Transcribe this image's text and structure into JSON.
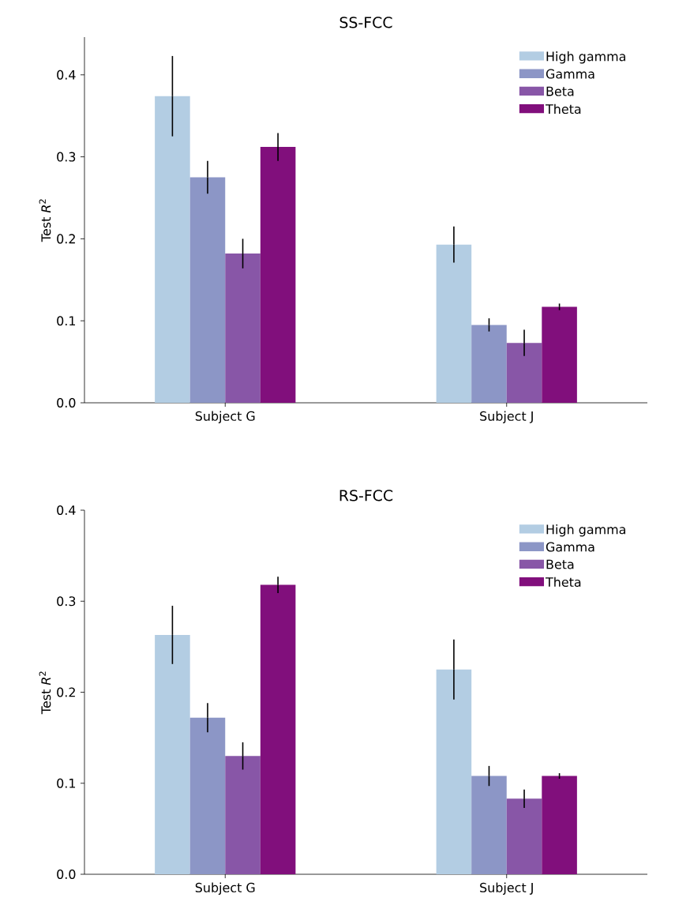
{
  "chart_data": [
    {
      "type": "bar",
      "title": "SS-FCC",
      "ylabel": "Test *R*$^{2}$",
      "categories": [
        "Subject G",
        "Subject J"
      ],
      "ylim": [
        0,
        0.446
      ],
      "yticks": [
        {
          "value": 0,
          "label": "0.0"
        },
        0.1,
        0.2,
        0.3,
        0.4
      ],
      "legend": "top right",
      "series": [
        {
          "name": "High gamma",
          "color": "#b3cde3",
          "values": [
            0.374,
            0.193
          ],
          "errors": [
            0.049,
            0.022
          ]
        },
        {
          "name": "Gamma",
          "color": "#8c96c6",
          "values": [
            0.275,
            0.095
          ],
          "errors": [
            0.02,
            0.008
          ]
        },
        {
          "name": "Beta",
          "color": "#8856a7",
          "values": [
            0.182,
            0.073
          ],
          "errors": [
            0.018,
            0.016
          ]
        },
        {
          "name": "Theta",
          "color": "#810f7c",
          "values": [
            0.312,
            0.117
          ],
          "errors": [
            0.017,
            0.004
          ]
        }
      ]
    },
    {
      "type": "bar",
      "title": "RS-FCC",
      "ylabel": "Test *R*$^{2}$",
      "categories": [
        "Subject G",
        "Subject J"
      ],
      "ylim": [
        0,
        0.4
      ],
      "yticks": [
        {
          "value": 0,
          "label": "0.0"
        },
        0.1,
        0.2,
        0.3,
        0.4
      ],
      "legend": "top right",
      "series": [
        {
          "name": "High gamma",
          "color": "#b3cde3",
          "values": [
            0.263,
            0.225
          ],
          "errors": [
            0.032,
            0.033
          ]
        },
        {
          "name": "Gamma",
          "color": "#8c96c6",
          "values": [
            0.172,
            0.108
          ],
          "errors": [
            0.016,
            0.011
          ]
        },
        {
          "name": "Beta",
          "color": "#8856a7",
          "values": [
            0.13,
            0.083
          ],
          "errors": [
            0.015,
            0.01
          ]
        },
        {
          "name": "Theta",
          "color": "#810f7c",
          "values": [
            0.318,
            0.108
          ],
          "errors": [
            0.009,
            0.003
          ]
        }
      ]
    }
  ]
}
